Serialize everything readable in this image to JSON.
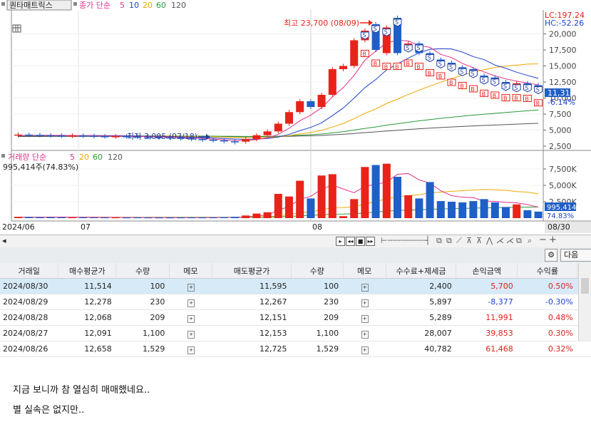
{
  "chart": {
    "stock_name": "퀀타매트릭스",
    "price_legend": {
      "label": "종가 단순",
      "periods": [
        "5",
        "10",
        "20",
        "60",
        "120"
      ]
    },
    "volume_legend": {
      "label": "거래량 단순",
      "periods": [
        "5",
        "20",
        "60",
        "120"
      ]
    },
    "volume_value": "995,414주(74.83%)",
    "high_annotation": "최고 23,700 (08/09)",
    "low_annotation": "최저 3,005 (07/18)",
    "lc_label": "LC:197.24",
    "hc_label": "HC:-52.26",
    "price_ticks": [
      "20,000",
      "17,500",
      "15,000",
      "12,500",
      "10,000",
      "7,500",
      "5,000",
      "2,500"
    ],
    "current_price": "11,310",
    "current_change": "-6.14%",
    "volume_ticks": [
      "7,500K",
      "5,000K",
      "2,500K"
    ],
    "current_volume": "995,414",
    "current_volume_pct": "74.83%",
    "date_labels": [
      "2024/06",
      "07",
      "08",
      "08/30"
    ],
    "colors": {
      "up": "#e8231a",
      "down": "#1f5fc8",
      "ma5": "#e0308a",
      "ma10": "#2040c8",
      "ma20": "#f0a800",
      "ma60": "#2a9a3a",
      "ma120": "#555555"
    }
  },
  "chart_data": {
    "type": "candlestick",
    "title": "퀀타매트릭스",
    "price_range": [
      2500,
      22500
    ],
    "volume_range": [
      0,
      10000
    ],
    "volume_unit": "K",
    "highest": {
      "value": 23700,
      "date": "08/09"
    },
    "lowest": {
      "value": 3005,
      "date": "07/18"
    },
    "candles": [
      {
        "o": 4200,
        "c": 4300,
        "v": 200
      },
      {
        "o": 4300,
        "c": 4250,
        "v": 180
      },
      {
        "o": 4250,
        "c": 4200,
        "v": 150
      },
      {
        "o": 4200,
        "c": 4150,
        "v": 160
      },
      {
        "o": 4150,
        "c": 4100,
        "v": 140
      },
      {
        "o": 4100,
        "c": 4150,
        "v": 120
      },
      {
        "o": 4150,
        "c": 4100,
        "v": 130
      },
      {
        "o": 4100,
        "c": 4050,
        "v": 110
      },
      {
        "o": 4050,
        "c": 4000,
        "v": 100
      },
      {
        "o": 4000,
        "c": 4050,
        "v": 100
      },
      {
        "o": 4050,
        "c": 4000,
        "v": 90
      },
      {
        "o": 4000,
        "c": 3950,
        "v": 100
      },
      {
        "o": 3950,
        "c": 3900,
        "v": 90
      },
      {
        "o": 3900,
        "c": 3850,
        "v": 80
      },
      {
        "o": 3850,
        "c": 3800,
        "v": 80
      },
      {
        "o": 3800,
        "c": 3700,
        "v": 90
      },
      {
        "o": 3700,
        "c": 3600,
        "v": 100
      },
      {
        "o": 3600,
        "c": 3500,
        "v": 90
      },
      {
        "o": 3500,
        "c": 3400,
        "v": 100
      },
      {
        "o": 3400,
        "c": 3250,
        "v": 150
      },
      {
        "o": 3250,
        "c": 3100,
        "v": 200
      },
      {
        "o": 3200,
        "c": 3600,
        "v": 400
      },
      {
        "o": 3600,
        "c": 4200,
        "v": 700
      },
      {
        "o": 4200,
        "c": 4800,
        "v": 900
      },
      {
        "o": 4800,
        "c": 6000,
        "v": 3700
      },
      {
        "o": 6000,
        "c": 7800,
        "v": 3300
      },
      {
        "o": 7800,
        "c": 9500,
        "v": 5700
      },
      {
        "o": 9500,
        "c": 8600,
        "v": 3000
      },
      {
        "o": 8600,
        "c": 10500,
        "v": 6500
      },
      {
        "o": 10500,
        "c": 14500,
        "v": 6700
      },
      {
        "o": 14500,
        "c": 15000,
        "v": 300
      },
      {
        "o": 15000,
        "c": 19000,
        "v": 2900
      },
      {
        "o": 19000,
        "c": 20500,
        "v": 7800
      },
      {
        "o": 21500,
        "c": 17500,
        "v": 8100
      },
      {
        "o": 17000,
        "c": 21000,
        "v": 8300
      },
      {
        "o": 22500,
        "c": 17000,
        "v": 6300
      },
      {
        "o": 17500,
        "c": 18500,
        "v": 3500
      },
      {
        "o": 18500,
        "c": 17000,
        "v": 3000
      },
      {
        "o": 17000,
        "c": 16000,
        "v": 5500
      },
      {
        "o": 16000,
        "c": 15500,
        "v": 2600
      },
      {
        "o": 15500,
        "c": 14500,
        "v": 2500
      },
      {
        "o": 14800,
        "c": 14000,
        "v": 2400
      },
      {
        "o": 14500,
        "c": 13500,
        "v": 2600
      },
      {
        "o": 13500,
        "c": 12800,
        "v": 2900
      },
      {
        "o": 13200,
        "c": 12500,
        "v": 2400
      },
      {
        "o": 12500,
        "c": 12100,
        "v": 1700
      },
      {
        "o": 12100,
        "c": 12300,
        "v": 2100
      },
      {
        "o": 12300,
        "c": 12000,
        "v": 1200
      },
      {
        "o": 12000,
        "c": 11310,
        "v": 995
      }
    ]
  },
  "table": {
    "columns": [
      "거래일",
      "매수평균가",
      "수량",
      "메모",
      "매도평균가",
      "수량",
      "메모",
      "수수료+제세금",
      "손익금액",
      "수익률"
    ],
    "rows": [
      {
        "date": "2024/08/30",
        "buy_avg": "11,514",
        "buy_qty": "100",
        "memo1": "+",
        "sell_avg": "11,595",
        "sell_qty": "100",
        "memo2": "+",
        "fee": "2,400",
        "pnl": "5,700",
        "pnl_color": "red",
        "rate": "0.50%",
        "rate_color": "red"
      },
      {
        "date": "2024/08/29",
        "buy_avg": "12,278",
        "buy_qty": "230",
        "memo1": "+",
        "sell_avg": "12,267",
        "sell_qty": "230",
        "memo2": "+",
        "fee": "5,897",
        "pnl": "-8,377",
        "pnl_color": "blue",
        "rate": "-0.30%",
        "rate_color": "blue"
      },
      {
        "date": "2024/08/28",
        "buy_avg": "12,068",
        "buy_qty": "209",
        "memo1": "+",
        "sell_avg": "12,151",
        "sell_qty": "209",
        "memo2": "+",
        "fee": "5,289",
        "pnl": "11,991",
        "pnl_color": "red",
        "rate": "0.48%",
        "rate_color": "red"
      },
      {
        "date": "2024/08/27",
        "buy_avg": "12,091",
        "buy_qty": "1,100",
        "memo1": "+",
        "sell_avg": "12,153",
        "sell_qty": "1,100",
        "memo2": "+",
        "fee": "28,007",
        "pnl": "39,853",
        "pnl_color": "red",
        "rate": "0.30%",
        "rate_color": "red"
      },
      {
        "date": "2024/08/26",
        "buy_avg": "12,658",
        "buy_qty": "1,529",
        "memo1": "+",
        "sell_avg": "12,725",
        "sell_qty": "1,529",
        "memo2": "+",
        "fee": "40,782",
        "pnl": "61,468",
        "pnl_color": "red",
        "rate": "0.32%",
        "rate_color": "red"
      }
    ]
  },
  "toolbar": {
    "next_label": "다음"
  },
  "comments": [
    "지금 보니까 참 열심히 매매했네요..",
    "별 실속은 없지만.."
  ]
}
